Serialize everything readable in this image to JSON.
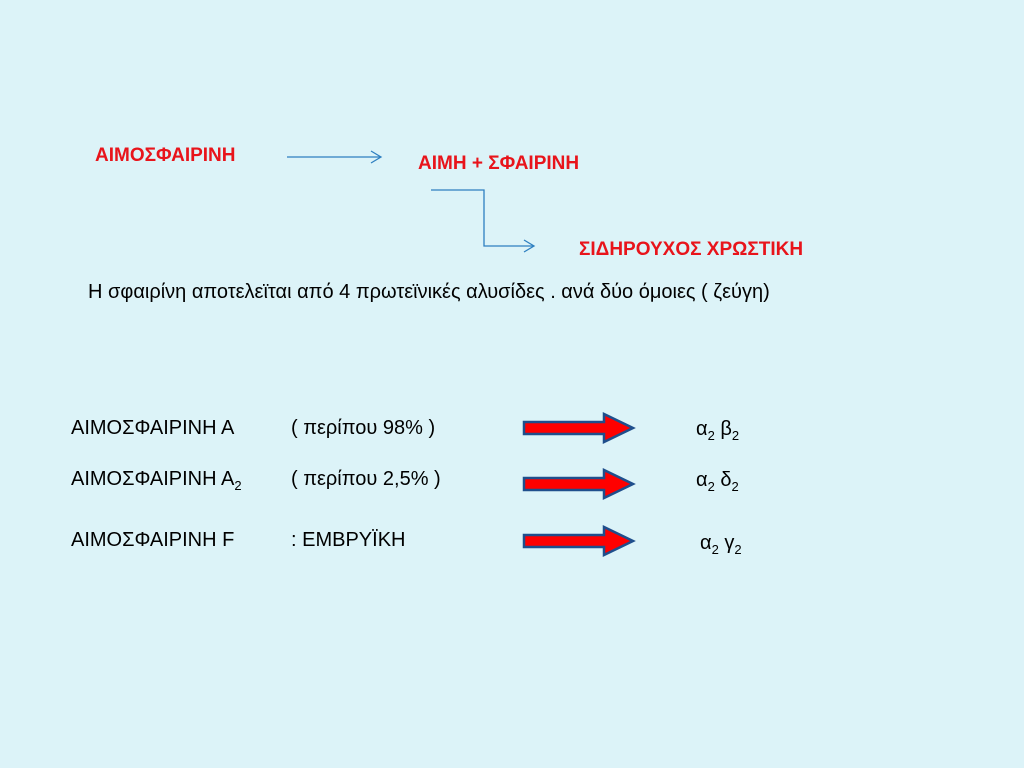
{
  "diagram": {
    "hemoglobin": "ΑΙΜΟΣΦΑΙΡΙΝΗ",
    "heme_plus_globin": "ΑΙΜΗ  +  ΣΦΑΙΡΙΝΗ",
    "iron_pigment": "ΣΙΔΗΡΟΥΧΟΣ  ΧΡΩΣΤΙΚΗ",
    "label_color": "#e8141b",
    "connector_color": "#2e7fc0"
  },
  "description": "Η σφαιρίνη αποτελεϊται από 4 πρωτεϊνικές αλυσίδες . ανά δύο όμοιες ( ζεύγη)",
  "rows": [
    {
      "name": "ΑΙΜΟΣΦΑΙΡΙΝΗ  Α",
      "name_sub": "",
      "detail": "( περίπου  98% )",
      "chain_a": "α",
      "chain_a_sub": "2",
      "chain_b": "β",
      "chain_b_sub": "2"
    },
    {
      "name": "ΑΙΜΟΣΦΑΙΡΙΝΗ  Α",
      "name_sub": "2",
      "detail": "( περίπου  2,5% )",
      "chain_a": "α",
      "chain_a_sub": "2",
      "chain_b": "δ",
      "chain_b_sub": "2"
    },
    {
      "name": "ΑΙΜΟΣΦΑΙΡΙΝΗ  F",
      "name_sub": "",
      "detail": ":     ΕΜΒΡΥΪΚΗ",
      "chain_a": "α",
      "chain_a_sub": "2",
      "chain_b": "γ",
      "chain_b_sub": "2"
    }
  ],
  "block_arrow": {
    "fill": "#ff0000",
    "outline": "#1f4e8c"
  },
  "background": "#dcf3f8"
}
